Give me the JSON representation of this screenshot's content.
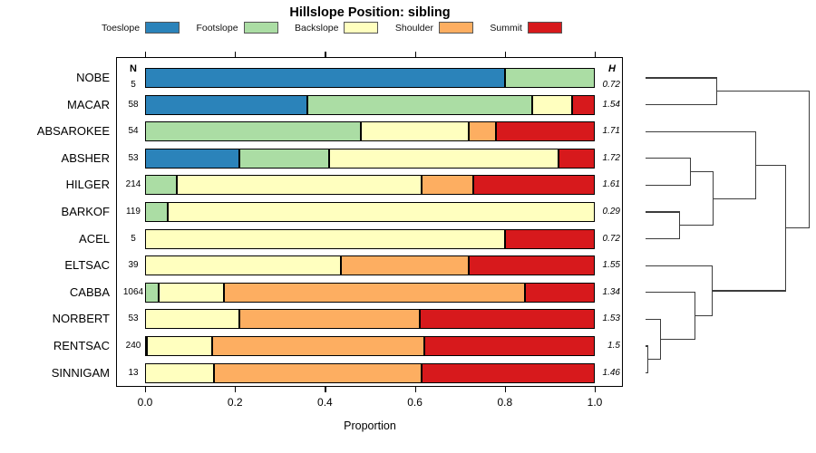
{
  "title": "Hillslope Position: sibling",
  "columns": {
    "n_header": "N",
    "h_header": "H"
  },
  "axis": {
    "xlabel": "Proportion",
    "ticks": [
      "0.0",
      "0.2",
      "0.4",
      "0.6",
      "0.8",
      "1.0"
    ]
  },
  "legend": [
    {
      "label": "Toeslope",
      "color": "#2B83BA"
    },
    {
      "label": "Footslope",
      "color": "#ABDDA4"
    },
    {
      "label": "Backslope",
      "color": "#FFFFBF"
    },
    {
      "label": "Shoulder",
      "color": "#FDAE61"
    },
    {
      "label": "Summit",
      "color": "#D7191C"
    }
  ],
  "chart_data": {
    "type": "bar",
    "orientation": "horizontal-stacked",
    "title": "Hillslope Position: sibling",
    "xlabel": "Proportion",
    "xlim": [
      0.0,
      1.0
    ],
    "categories": [
      "Toeslope",
      "Footslope",
      "Backslope",
      "Shoulder",
      "Summit"
    ],
    "colors": [
      "#2B83BA",
      "#ABDDA4",
      "#FFFFBF",
      "#FDAE61",
      "#D7191C"
    ],
    "rows": [
      {
        "name": "NOBE",
        "n": "5",
        "h": "0.72",
        "proportions": [
          0.8,
          0.2,
          0,
          0,
          0
        ]
      },
      {
        "name": "MACAR",
        "n": "58",
        "h": "1.54",
        "proportions": [
          0.36,
          0.5,
          0.09,
          0,
          0.05
        ]
      },
      {
        "name": "ABSAROKEE",
        "n": "54",
        "h": "1.71",
        "proportions": [
          0,
          0.48,
          0.24,
          0.06,
          0.22
        ]
      },
      {
        "name": "ABSHER",
        "n": "53",
        "h": "1.72",
        "proportions": [
          0.21,
          0.2,
          0.51,
          0,
          0.08
        ]
      },
      {
        "name": "HILGER",
        "n": "214",
        "h": "1.61",
        "proportions": [
          0,
          0.07,
          0.545,
          0.115,
          0.27
        ]
      },
      {
        "name": "BARKOF",
        "n": "119",
        "h": "0.29",
        "proportions": [
          0,
          0.05,
          0.95,
          0,
          0
        ]
      },
      {
        "name": "ACEL",
        "n": "5",
        "h": "0.72",
        "proportions": [
          0,
          0,
          0.8,
          0,
          0.2
        ]
      },
      {
        "name": "ELTSAC",
        "n": "39",
        "h": "1.55",
        "proportions": [
          0,
          0,
          0.435,
          0.285,
          0.28
        ]
      },
      {
        "name": "CABBA",
        "n": "1064",
        "h": "1.34",
        "proportions": [
          0,
          0.03,
          0.145,
          0.67,
          0.155
        ]
      },
      {
        "name": "NORBERT",
        "n": "53",
        "h": "1.53",
        "proportions": [
          0,
          0,
          0.21,
          0.4,
          0.39
        ]
      },
      {
        "name": "RENTSAC",
        "n": "240",
        "h": "1.5",
        "proportions": [
          0.004,
          0,
          0.146,
          0.47,
          0.38
        ]
      },
      {
        "name": "SINNIGAM",
        "n": "13",
        "h": "1.46",
        "proportions": [
          0,
          0,
          0.154,
          0.46,
          0.386
        ]
      }
    ],
    "dendrogram": {
      "h": 1.0,
      "children": [
        {
          "h": 0.433,
          "children": [
            "NOBE",
            "MACAR"
          ]
        },
        {
          "h": 0.856,
          "children": [
            {
              "h": 0.672,
              "children": [
                "ABSAROKEE",
                {
                  "h": 0.411,
                  "children": [
                    {
                      "h": 0.272,
                      "children": [
                        "ABSHER",
                        "HILGER"
                      ]
                    },
                    {
                      "h": 0.206,
                      "children": [
                        "BARKOF",
                        "ACEL"
                      ]
                    }
                  ]
                }
              ]
            },
            {
              "h": 0.406,
              "children": [
                "ELTSAC",
                {
                  "h": 0.3,
                  "children": [
                    "CABBA",
                    {
                      "h": 0.089,
                      "children": [
                        "NORBERT",
                        {
                          "h": 0.011,
                          "children": [
                            "RENTSAC",
                            "SINNIGAM"
                          ]
                        }
                      ]
                    }
                  ]
                }
              ]
            }
          ]
        }
      ]
    }
  }
}
